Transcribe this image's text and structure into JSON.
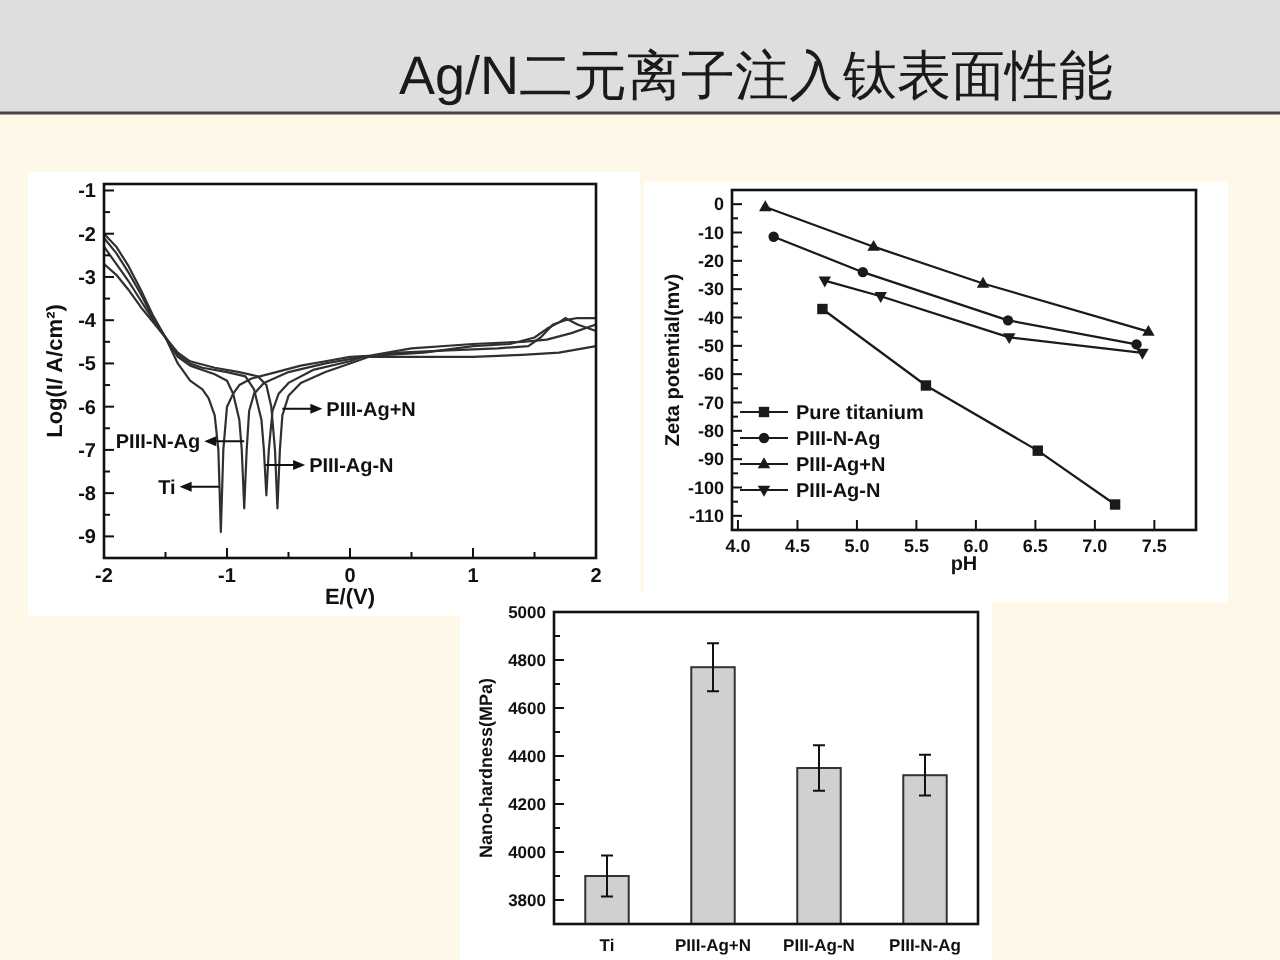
{
  "chart_data": [
    {
      "type": "other",
      "title": "Ag/N二元离子注入钛表面性能"
    },
    {
      "type": "line",
      "xlabel": "E/(V)",
      "ylabel": "Log(I/ A/cm²)",
      "xlim": [
        -2,
        2
      ],
      "ylim": [
        -9.5,
        -0.85
      ],
      "xticks": [
        -2,
        {
          "value": -1.5,
          "label": null
        },
        -1,
        {
          "value": -0.5,
          "label": null
        },
        0,
        {
          "value": 0.5,
          "label": null
        },
        1,
        {
          "value": 1.5,
          "label": null
        },
        2
      ],
      "yticks": [
        -9,
        {
          "value": -8.5,
          "label": null
        },
        -8,
        {
          "value": -7.5,
          "label": null
        },
        -7,
        {
          "value": -6.5,
          "label": null
        },
        -6,
        {
          "value": -5.5,
          "label": null
        },
        -5,
        {
          "value": -4.5,
          "label": null
        },
        -4,
        {
          "value": -3.5,
          "label": null
        },
        -3,
        {
          "value": -2.5,
          "label": null
        },
        -2,
        {
          "value": -1.5,
          "label": null
        },
        -1
      ],
      "series": [
        {
          "color": "#303030",
          "x": [
            -2,
            -1.9,
            -1.8,
            -1.7,
            -1.6,
            -1.5,
            -1.4,
            -1.3,
            -1.2,
            -1.15,
            -1.1,
            -1.07,
            -1.05,
            -1.03,
            -1,
            -0.95,
            -0.9,
            -0.8,
            -0.6,
            -0.4,
            -0.2,
            0,
            0.3,
            0.6,
            1,
            1.3,
            1.5,
            1.6,
            1.7,
            1.75,
            1.85,
            2
          ],
          "values": [
            -2,
            -2.3,
            -2.75,
            -3.3,
            -3.9,
            -4.4,
            -5,
            -5.4,
            -5.6,
            -5.8,
            -6.2,
            -7,
            -8.9,
            -7,
            -6,
            -5.7,
            -5.5,
            -5.35,
            -5.2,
            -5.05,
            -4.95,
            -4.85,
            -4.8,
            -4.75,
            -4.6,
            -4.55,
            -4.4,
            -4.2,
            -4.05,
            -3.95,
            -4.1,
            -4.25
          ]
        },
        {
          "color": "#303030",
          "x": [
            -2,
            -1.9,
            -1.8,
            -1.7,
            -1.6,
            -1.5,
            -1.4,
            -1.3,
            -1.2,
            -1.1,
            -1,
            -0.95,
            -0.9,
            -0.88,
            -0.86,
            -0.84,
            -0.82,
            -0.78,
            -0.7,
            -0.5,
            -0.2,
            0,
            0.1,
            0.3,
            0.6,
            1,
            1.4,
            1.7,
            2
          ],
          "values": [
            -2.1,
            -2.45,
            -2.9,
            -3.4,
            -3.95,
            -4.4,
            -4.85,
            -5.05,
            -5.15,
            -5.25,
            -5.4,
            -5.7,
            -6.3,
            -7,
            -8.35,
            -7,
            -6.1,
            -5.7,
            -5.45,
            -5.2,
            -5,
            -4.9,
            -4.85,
            -4.85,
            -4.85,
            -4.85,
            -4.8,
            -4.75,
            -4.6
          ]
        },
        {
          "color": "#303030",
          "x": [
            -2,
            -1.9,
            -1.8,
            -1.7,
            -1.6,
            -1.5,
            -1.4,
            -1.3,
            -1.2,
            -1,
            -0.85,
            -0.78,
            -0.72,
            -0.7,
            -0.68,
            -0.66,
            -0.63,
            -0.58,
            -0.5,
            -0.3,
            0,
            0.1,
            0.4,
            0.8,
            1.2,
            1.45,
            1.55,
            1.65,
            1.75,
            1.85,
            2
          ],
          "values": [
            -2.3,
            -2.7,
            -3.1,
            -3.55,
            -4,
            -4.4,
            -4.8,
            -5,
            -5.1,
            -5.2,
            -5.3,
            -5.6,
            -6.3,
            -7,
            -8.05,
            -7,
            -6.1,
            -5.7,
            -5.45,
            -5.15,
            -4.95,
            -4.85,
            -4.75,
            -4.7,
            -4.65,
            -4.6,
            -4.4,
            -4.1,
            -4,
            -3.95,
            -3.95
          ]
        },
        {
          "color": "#303030",
          "x": [
            -2,
            -1.9,
            -1.8,
            -1.7,
            -1.6,
            -1.5,
            -1.4,
            -1.3,
            -1.1,
            -0.9,
            -0.75,
            -0.68,
            -0.64,
            -0.61,
            -0.59,
            -0.57,
            -0.55,
            -0.5,
            -0.4,
            -0.2,
            0,
            0.2,
            0.5,
            1,
            1.4,
            1.6,
            1.8,
            2
          ],
          "values": [
            -2.7,
            -2.95,
            -3.3,
            -3.7,
            -4.05,
            -4.4,
            -4.75,
            -4.95,
            -5.1,
            -5.2,
            -5.3,
            -5.5,
            -6,
            -7,
            -8.35,
            -7,
            -6.2,
            -5.75,
            -5.45,
            -5.2,
            -5,
            -4.8,
            -4.65,
            -4.55,
            -4.5,
            -4.45,
            -4.3,
            -4.1
          ]
        }
      ],
      "annotations": [
        {
          "text": "PIII-Ag+N",
          "x": -0.55,
          "y": -6.05
        },
        {
          "text": "PIII-N-Ag",
          "x": -0.86,
          "y": -6.8
        },
        {
          "text": "PIII-Ag-N",
          "x": -0.69,
          "y": -7.35
        },
        {
          "text": "Ti",
          "x": -1.06,
          "y": -7.85
        }
      ]
    },
    {
      "type": "line",
      "xlabel": "pH",
      "ylabel": "Zeta potential(mv)",
      "xlim": [
        3.95,
        7.85
      ],
      "ylim": [
        -115,
        5
      ],
      "xticks": [
        {
          "value": 4,
          "label": "4.0"
        },
        4.5,
        {
          "value": 5,
          "label": "5.0"
        },
        5.5,
        {
          "value": 6,
          "label": "6.0"
        },
        6.5,
        {
          "value": 7,
          "label": "7.0"
        },
        7.5
      ],
      "yticks": [
        -110,
        {
          "value": -105,
          "label": null
        },
        -100,
        {
          "value": -95,
          "label": null
        },
        -90,
        {
          "value": -85,
          "label": null
        },
        -80,
        {
          "value": -75,
          "label": null
        },
        -70,
        {
          "value": -65,
          "label": null
        },
        -60,
        {
          "value": -55,
          "label": null
        },
        -50,
        {
          "value": -45,
          "label": null
        },
        -40,
        {
          "value": -35,
          "label": null
        },
        -30,
        {
          "value": -25,
          "label": null
        },
        -20,
        {
          "value": -15,
          "label": null
        },
        -10,
        {
          "value": -5,
          "label": null
        },
        0
      ],
      "series": [
        {
          "name": "Pure titanium",
          "color": "#1a1a1a",
          "marker": "square",
          "x": [
            4.71,
            5.58,
            6.52,
            7.17
          ],
          "values": [
            -37,
            -64,
            -87,
            -106
          ]
        },
        {
          "name": "PIII-N-Ag",
          "color": "#1a1a1a",
          "marker": "circle",
          "x": [
            4.3,
            5.05,
            6.27,
            7.35
          ],
          "values": [
            -11.5,
            -24,
            -41,
            -49.5
          ]
        },
        {
          "name": "PIII-Ag+N",
          "color": "#1a1a1a",
          "marker": "triangle",
          "x": [
            4.23,
            5.14,
            6.06,
            7.45
          ],
          "values": [
            -1,
            -15,
            -28,
            -45
          ]
        },
        {
          "name": "PIII-Ag-N",
          "color": "#1a1a1a",
          "marker": "triangle-down",
          "x": [
            4.73,
            5.2,
            6.28,
            7.4
          ],
          "values": [
            -27,
            -32.5,
            -47,
            -52.5
          ]
        }
      ],
      "legend": "bottom left"
    },
    {
      "type": "bar",
      "ylabel": "Nano-hardness(MPa)",
      "categories": [
        "Ti",
        "PIII-Ag+N",
        "PIII-Ag-N",
        "PIII-N-Ag"
      ],
      "values": [
        3900,
        4770,
        4350,
        4320
      ],
      "errors": [
        85,
        100,
        95,
        85
      ],
      "color": "#d0d0d0",
      "ylim": [
        3700,
        5000
      ],
      "yticks": [
        3800,
        {
          "value": 3900,
          "label": null
        },
        4000,
        {
          "value": 4100,
          "label": null
        },
        4200,
        {
          "value": 4300,
          "label": null
        },
        4400,
        {
          "value": 4500,
          "label": null
        },
        4600,
        {
          "value": 4700,
          "label": null
        },
        4800,
        {
          "value": 4900,
          "label": null
        },
        5000
      ]
    }
  ]
}
